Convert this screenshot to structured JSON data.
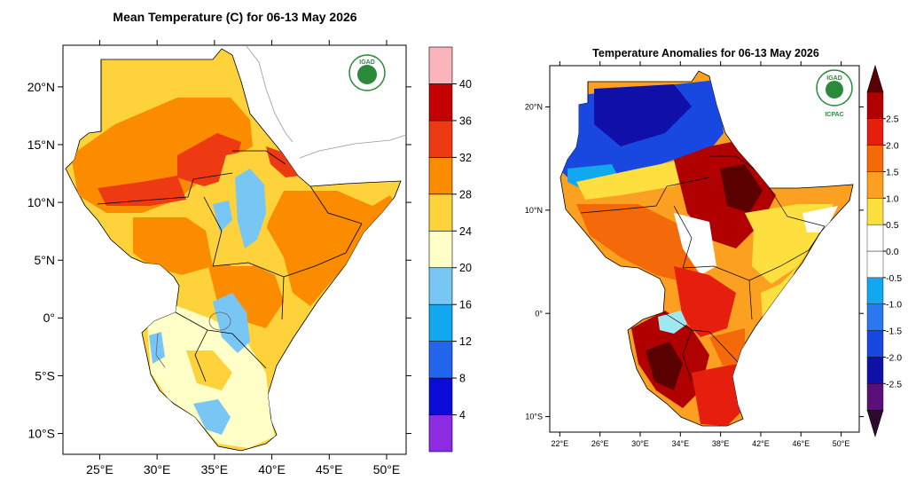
{
  "left_map": {
    "title": "Mean Temperature (C) for 06-13 May 2026",
    "logo_text": "IGAD",
    "x_ticks": [
      {
        "lon": 25,
        "label": "25°E"
      },
      {
        "lon": 30,
        "label": "30°E"
      },
      {
        "lon": 35,
        "label": "35°E"
      },
      {
        "lon": 40,
        "label": "40°E"
      },
      {
        "lon": 45,
        "label": "45°E"
      },
      {
        "lon": 50,
        "label": "50°E"
      }
    ],
    "y_ticks": [
      {
        "lat": 20,
        "label": "20°N"
      },
      {
        "lat": 15,
        "label": "15°N"
      },
      {
        "lat": 10,
        "label": "10°N"
      },
      {
        "lat": 5,
        "label": "5°N"
      },
      {
        "lat": 0,
        "label": "0°"
      },
      {
        "lat": -5,
        "label": "5°S"
      },
      {
        "lat": -10,
        "label": "10°S"
      }
    ],
    "lon_range": [
      21.8,
      51.7
    ],
    "lat_range": [
      -11.8,
      23.6
    ],
    "colorbar": {
      "colors": [
        "#8b2be2",
        "#0c0cd8",
        "#2266ee",
        "#12a8f0",
        "#78c6f4",
        "#ffffc8",
        "#fdd23a",
        "#fb8c00",
        "#ed3a12",
        "#c40000",
        "#f9b4bc"
      ],
      "labels": [
        "4",
        "8",
        "12",
        "16",
        "20",
        "24",
        "28",
        "32",
        "36",
        "40"
      ]
    }
  },
  "right_map": {
    "title": "Temperature Anomalies for 06-13 May 2026",
    "logo_text": "IGAD",
    "logo_sub": "ICPAC",
    "x_ticks": [
      {
        "lon": 22,
        "label": "22°E"
      },
      {
        "lon": 26,
        "label": "26°E"
      },
      {
        "lon": 30,
        "label": "30°E"
      },
      {
        "lon": 34,
        "label": "34°E"
      },
      {
        "lon": 38,
        "label": "38°E"
      },
      {
        "lon": 42,
        "label": "42°E"
      },
      {
        "lon": 46,
        "label": "46°E"
      },
      {
        "lon": 50,
        "label": "50°E"
      }
    ],
    "y_ticks": [
      {
        "lat": 20,
        "label": "20°N"
      },
      {
        "lat": 10,
        "label": "10°N"
      },
      {
        "lat": 0,
        "label": "0°"
      },
      {
        "lat": -10,
        "label": "10°S"
      }
    ],
    "lon_range": [
      21.0,
      51.8
    ],
    "lat_range": [
      -11.5,
      24.0
    ],
    "colorbar": {
      "colors": [
        "#2e0a2e",
        "#5a1078",
        "#1010a8",
        "#1848e0",
        "#2a78f0",
        "#12a8f0",
        "#ffffff",
        "#ffffff",
        "#fde040",
        "#fba020",
        "#f46a0a",
        "#e61e0e",
        "#b00000",
        "#5a0000"
      ],
      "labels": [
        "-2.5",
        "-2.0",
        "-1.5",
        "-1.0",
        "-0.5",
        "0.0",
        "0.5",
        "1.0",
        "1.5",
        "2.0",
        "2.5"
      ]
    }
  }
}
